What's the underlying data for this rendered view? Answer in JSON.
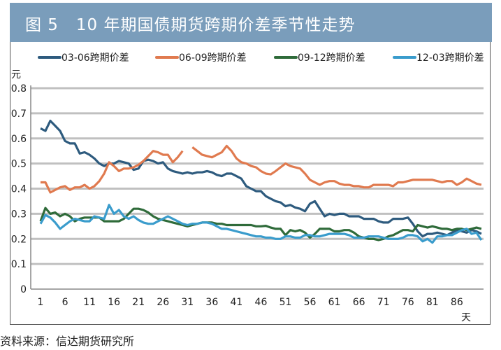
{
  "header": {
    "title": "图 5   10 年期国债期货跨期价差季节性走势"
  },
  "source": "资料来源：信达期货研究所",
  "chart_data": {
    "type": "line",
    "title": "图 5   10 年期国债期货跨期价差季节性走势",
    "ylabel": "元",
    "xlabel": "天",
    "ylim": [
      0,
      0.8
    ],
    "xlim": [
      1,
      91
    ],
    "yticks": [
      "0",
      "0.1",
      "0.2",
      "0.3",
      "0.4",
      "0.5",
      "0.6",
      "0.7",
      "0.8"
    ],
    "xticks": [
      "1",
      "6",
      "11",
      "16",
      "21",
      "26",
      "31",
      "36",
      "41",
      "46",
      "51",
      "56",
      "61",
      "66",
      "71",
      "76",
      "81",
      "86"
    ],
    "grid": true,
    "legend": "top",
    "series": [
      {
        "name": "03-06跨期价差",
        "color": "#2e5b7e",
        "values": [
          0.64,
          0.63,
          0.67,
          0.65,
          0.63,
          0.59,
          0.58,
          0.58,
          0.54,
          0.545,
          0.535,
          0.52,
          0.5,
          0.49,
          0.5,
          0.5,
          0.51,
          0.505,
          0.5,
          0.475,
          0.48,
          0.51,
          0.515,
          0.51,
          0.5,
          0.505,
          0.48,
          0.47,
          0.465,
          0.46,
          0.465,
          0.46,
          0.465,
          0.465,
          0.47,
          0.465,
          0.455,
          0.45,
          0.46,
          0.46,
          0.45,
          0.44,
          0.41,
          0.4,
          0.39,
          0.39,
          0.37,
          0.36,
          0.35,
          0.345,
          0.33,
          0.335,
          0.325,
          0.32,
          0.31,
          0.34,
          0.35,
          0.32,
          0.29,
          0.3,
          0.295,
          0.3,
          0.3,
          0.29,
          0.29,
          0.29,
          0.28,
          0.28,
          0.28,
          0.27,
          0.265,
          0.265,
          0.28,
          0.28,
          0.28,
          0.285,
          0.26,
          0.23,
          0.21,
          0.22,
          0.22,
          0.225,
          0.22,
          0.215,
          0.225,
          0.235,
          0.23,
          0.225,
          0.235,
          0.23,
          0.22
        ]
      },
      {
        "name": "06-09跨期价差",
        "color": "#e07a4f",
        "values": [
          0.425,
          0.425,
          0.385,
          0.395,
          0.405,
          0.41,
          0.395,
          0.405,
          0.405,
          0.415,
          0.4,
          0.41,
          0.43,
          0.46,
          0.505,
          0.49,
          0.47,
          0.48,
          0.48,
          0.485,
          0.495,
          0.51,
          0.53,
          0.55,
          0.545,
          0.535,
          0.535,
          0.505,
          0.525,
          0.55,
          null,
          0.565,
          0.55,
          0.535,
          0.53,
          0.525,
          0.535,
          0.545,
          0.57,
          0.55,
          0.52,
          0.505,
          0.5,
          0.49,
          0.485,
          0.47,
          0.46,
          0.457,
          0.47,
          0.485,
          0.5,
          0.49,
          0.485,
          0.48,
          0.46,
          0.435,
          0.425,
          0.415,
          0.425,
          0.43,
          0.43,
          0.42,
          0.415,
          0.415,
          0.41,
          0.41,
          0.405,
          0.405,
          0.415,
          0.415,
          0.415,
          0.415,
          0.41,
          0.425,
          0.425,
          0.43,
          0.435,
          0.435,
          0.435,
          0.435,
          0.435,
          0.43,
          0.425,
          0.43,
          0.43,
          0.415,
          0.425,
          0.44,
          0.43,
          0.42,
          0.415
        ]
      },
      {
        "name": "09-12跨期价差",
        "color": "#2f6b3a",
        "values": [
          0.27,
          0.323,
          0.3,
          0.305,
          0.29,
          0.3,
          0.29,
          0.27,
          0.28,
          0.285,
          0.285,
          0.285,
          0.285,
          0.27,
          0.27,
          0.27,
          0.27,
          0.28,
          0.3,
          0.32,
          0.32,
          0.315,
          0.305,
          0.29,
          0.28,
          0.275,
          0.27,
          0.265,
          0.26,
          0.255,
          0.25,
          0.255,
          0.26,
          0.265,
          0.265,
          0.265,
          0.26,
          0.26,
          0.255,
          0.255,
          0.255,
          0.255,
          0.255,
          0.255,
          0.25,
          0.25,
          0.252,
          0.245,
          0.24,
          0.24,
          0.215,
          0.235,
          0.23,
          0.235,
          0.225,
          0.205,
          0.22,
          0.24,
          0.24,
          0.24,
          0.23,
          0.23,
          0.235,
          0.235,
          0.225,
          0.21,
          0.205,
          0.2,
          0.2,
          0.195,
          0.2,
          0.21,
          0.215,
          0.225,
          0.235,
          0.235,
          0.23,
          0.255,
          0.25,
          0.245,
          0.25,
          0.245,
          0.24,
          0.24,
          0.235,
          0.24,
          0.24,
          0.235,
          0.24,
          0.245,
          0.24
        ]
      },
      {
        "name": "12-03跨期价差",
        "color": "#3a9ccc",
        "values": [
          0.26,
          0.295,
          0.285,
          0.265,
          0.24,
          0.255,
          0.27,
          0.28,
          0.275,
          0.27,
          0.27,
          0.29,
          0.285,
          0.28,
          0.335,
          0.3,
          0.315,
          0.29,
          0.28,
          0.29,
          0.275,
          0.265,
          0.26,
          0.26,
          0.27,
          0.28,
          0.29,
          0.28,
          0.27,
          0.26,
          0.255,
          0.26,
          0.26,
          0.265,
          0.265,
          0.26,
          0.25,
          0.24,
          0.24,
          0.235,
          0.23,
          0.225,
          0.22,
          0.215,
          0.21,
          0.21,
          0.205,
          0.205,
          0.2,
          0.2,
          0.21,
          0.21,
          0.205,
          0.205,
          0.215,
          0.215,
          0.21,
          0.21,
          0.215,
          0.22,
          0.22,
          0.22,
          0.22,
          0.215,
          0.205,
          0.205,
          0.205,
          0.21,
          0.21,
          0.21,
          0.205,
          0.2,
          0.2,
          0.2,
          0.205,
          0.215,
          0.215,
          0.21,
          0.19,
          0.2,
          0.185,
          0.21,
          0.21,
          0.215,
          0.215,
          0.225,
          0.235,
          0.24,
          0.22,
          0.225,
          0.195
        ]
      }
    ]
  }
}
